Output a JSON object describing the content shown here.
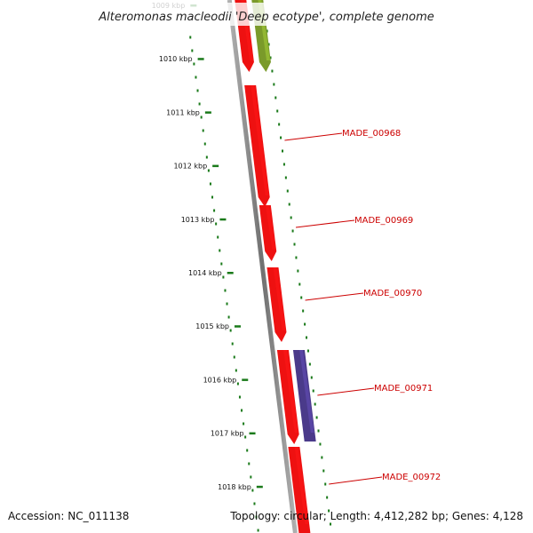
{
  "title": "Alteromonas macleodii 'Deep ecotype', complete genome",
  "accession": "Accession: NC_011138",
  "topology": "Topology: circular; Length: 4,412,282 bp; Genes: 4,128",
  "ticks": [
    "1009 kbp",
    "1010 kbp",
    "1011 kbp",
    "1012 kbp",
    "1013 kbp",
    "1014 kbp",
    "1015 kbp",
    "1016 kbp",
    "1017 kbp",
    "1018 kbp"
  ],
  "genes": [
    {
      "label": "",
      "color": "#ee1111"
    },
    {
      "label": "",
      "color": "#7a9a2a"
    },
    {
      "label": "MADE_00968",
      "color": "#ee1111"
    },
    {
      "label": "MADE_00969",
      "color": "#ee1111"
    },
    {
      "label": "MADE_00970",
      "color": "#ee1111"
    },
    {
      "label": "MADE_00971",
      "color": "#ee1111"
    },
    {
      "label": "",
      "color": "#4a3a8a"
    },
    {
      "label": "MADE_00972",
      "color": "#ee1111"
    }
  ],
  "colors": {
    "ruler_ticks": "#1a7a1a",
    "backbone": "#808080",
    "label_text": "#cc0000"
  }
}
